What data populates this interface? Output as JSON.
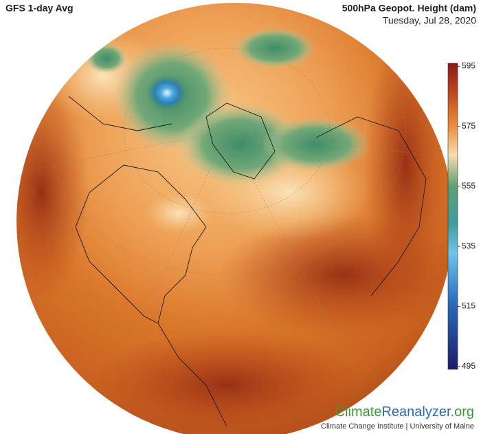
{
  "header": {
    "title": "GFS 1-day Avg",
    "variable": "500hPa Geopot. Height (dam)",
    "date": "Tuesday, Jul 28, 2020"
  },
  "colorbar": {
    "lim": [
      494,
      596
    ],
    "ticks": [
      595,
      575,
      555,
      535,
      515,
      495
    ]
  },
  "footer": {
    "logo": [
      "Climate",
      "Reanalyzer",
      ".org"
    ],
    "credit": "Climate Change Institute | University of Maine"
  }
}
